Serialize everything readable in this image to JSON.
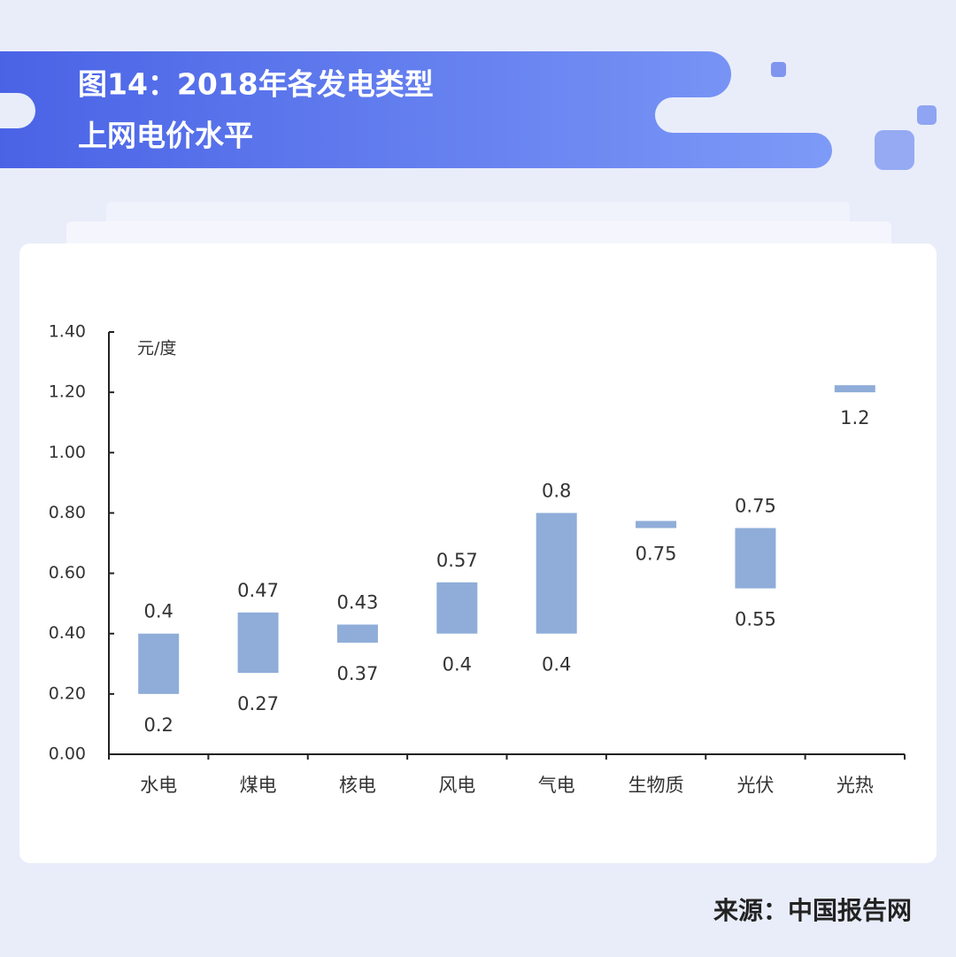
{
  "header": {
    "title_line1": "图14：2018年各发电类型",
    "title_line2": "上网电价水平"
  },
  "chart_data": {
    "type": "bar",
    "unit_label": "元/度",
    "categories": [
      "水电",
      "煤电",
      "核电",
      "风电",
      "气电",
      "生物质",
      "光伏",
      "光热"
    ],
    "series": [
      {
        "name": "low",
        "color": "#8fadd8",
        "values": [
          0.2,
          0.27,
          0.37,
          0.4,
          0.4,
          0.75,
          0.55,
          1.2
        ]
      },
      {
        "name": "high",
        "color": "#8fadd8",
        "values": [
          0.4,
          0.47,
          0.43,
          0.57,
          0.8,
          0.75,
          0.75,
          1.2
        ]
      }
    ],
    "ylim": [
      0,
      1.4
    ],
    "yticks": [
      {
        "value": 0,
        "label": "0.00"
      },
      {
        "value": 0.2,
        "label": "0.20"
      },
      {
        "value": 0.4,
        "label": "0.40"
      },
      {
        "value": 0.6,
        "label": "0.60"
      },
      {
        "value": 0.8,
        "label": "0.80"
      },
      {
        "value": 1,
        "label": "1.00"
      },
      {
        "value": 1.2,
        "label": "1.20"
      },
      {
        "value": 1.4,
        "label": "1.40"
      }
    ]
  },
  "footer": {
    "source": "来源：中国报告网"
  }
}
